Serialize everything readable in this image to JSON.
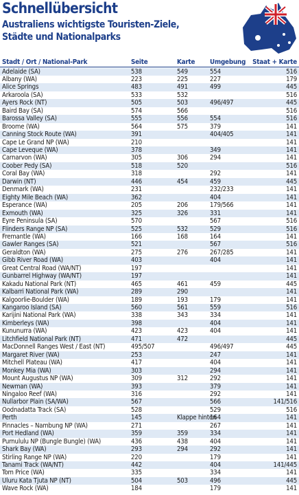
{
  "header": {
    "title": "Schnellübersicht",
    "subtitle_lines": [
      "Australiens wichtigste Touristen-Ziele,",
      "Städte und Nationalparks"
    ]
  },
  "table": {
    "columns": [
      "Stadt / Ort / National-Park",
      "Seite",
      "Karte",
      "Umgebung",
      "Staat + Karte"
    ],
    "rows": [
      [
        "Adelaide (SA)",
        "538",
        "549",
        "554",
        "516"
      ],
      [
        "Albany (WA)",
        "223",
        "225",
        "227",
        "179"
      ],
      [
        "Alice Springs",
        "483",
        "491",
        "499",
        "445"
      ],
      [
        "Arkaroola (SA)",
        "533",
        "532",
        null,
        "516"
      ],
      [
        "Ayers Rock (NT)",
        "505",
        "503",
        "496/497",
        "445"
      ],
      [
        "Baird Bay (SA)",
        "574",
        "566",
        null,
        "516"
      ],
      [
        "Barossa Valley (SA)",
        "555",
        "556",
        "554",
        "516"
      ],
      [
        "Broome (WA)",
        "564",
        "575",
        "379",
        "141"
      ],
      [
        "Canning Stock Route (WA)",
        "391",
        null,
        "404/405",
        "141"
      ],
      [
        "Cape Le Grand NP (WA)",
        "210",
        null,
        null,
        "141"
      ],
      [
        "Cape Leveque (WA)",
        "378",
        null,
        "349",
        "141"
      ],
      [
        "Carnarvon (WA)",
        "305",
        "306",
        "294",
        "141"
      ],
      [
        "Coober Pedy (SA)",
        "518",
        "520",
        null,
        "516"
      ],
      [
        "Coral Bay (WA)",
        "318",
        null,
        "292",
        "141"
      ],
      [
        "Darwin (NT)",
        "446",
        "454",
        "459",
        "445"
      ],
      [
        "Denmark (WA)",
        "231",
        null,
        "232/233",
        "141"
      ],
      [
        "Eighty Mile Beach (WA)",
        "362",
        null,
        "404",
        "141"
      ],
      [
        "Esperance (WA)",
        "205",
        "206",
        "179/566",
        "141"
      ],
      [
        "Exmouth (WA)",
        "325",
        "326",
        "331",
        "141"
      ],
      [
        "Eyre Peninsula (SA)",
        "570",
        null,
        "567",
        "516"
      ],
      [
        "Flinders Range NP (SA)",
        "525",
        "532",
        "529",
        "516"
      ],
      [
        "Fremantle (WA)",
        "166",
        "168",
        "164",
        "141"
      ],
      [
        "Gawler Ranges (SA)",
        "521",
        null,
        "567",
        "516"
      ],
      [
        "Geraldton (WA)",
        "275",
        "276",
        "267/285",
        "141"
      ],
      [
        "Gibb River Road (WA)",
        "403",
        null,
        "404",
        "141"
      ],
      [
        "Great Central Road (WA/NT)",
        "197",
        null,
        null,
        "141"
      ],
      [
        "Gunbarrel Highway (WA/NT)",
        "197",
        null,
        null,
        "141"
      ],
      [
        "Kakadu National Park (NT)",
        "465",
        "461",
        "459",
        "445"
      ],
      [
        "Kalbarri National Park (WA)",
        "289",
        "290",
        null,
        "141"
      ],
      [
        "Kalgoorlie-Boulder (WA)",
        "189",
        "193",
        "179",
        "141"
      ],
      [
        "Kangaroo Island (SA)",
        "560",
        "561",
        "559",
        "516"
      ],
      [
        "Karijini National Park (WA)",
        "338",
        "343",
        "334",
        "141"
      ],
      [
        "Kimberleys (WA)",
        "398",
        null,
        "404",
        "141"
      ],
      [
        "Kununurra (WA)",
        "423",
        "423",
        "404",
        "141"
      ],
      [
        "Litchfield National Park (NT)",
        "471",
        "472",
        null,
        "445"
      ],
      [
        "MacDonnell Ranges West / East (NT)",
        "495/507",
        null,
        "496/497",
        "445"
      ],
      [
        "Margaret River (WA)",
        "253",
        null,
        "247",
        "141"
      ],
      [
        "Mitchell Plateau (WA)",
        "417",
        null,
        "404",
        "141"
      ],
      [
        "Monkey Mia (WA)",
        "303",
        null,
        "294",
        "141"
      ],
      [
        "Mount Augustus NP (WA)",
        "309",
        "312",
        "292",
        "141"
      ],
      [
        "Newman (WA)",
        "393",
        null,
        "379",
        "141"
      ],
      [
        "Ningaloo Reef (WA)",
        "316",
        null,
        "292",
        "141"
      ],
      [
        "Nullarbor Plain (SA/WA)",
        "567",
        null,
        "566",
        "141/516"
      ],
      [
        "Oodnadatta Track (SA)",
        "528",
        null,
        "529",
        "516"
      ],
      [
        "Perth",
        "145",
        "Klappe hinten",
        "164",
        "141"
      ],
      [
        "Pinnacles – Nambung NP (WA)",
        "271",
        null,
        "267",
        "141"
      ],
      [
        "Port Hedland (WA)",
        "359",
        "359",
        "334",
        "141"
      ],
      [
        "Purnululu NP (Bungle Bungle) (WA)",
        "436",
        "438",
        "404",
        "141"
      ],
      [
        "Shark Bay (WA)",
        "293",
        "294",
        "292",
        "141"
      ],
      [
        "Stirling Range NP (WA)",
        "220",
        null,
        "179",
        "141"
      ],
      [
        "Tanami Track (WA/NT)",
        "442",
        null,
        "404",
        "141/445"
      ],
      [
        "Tom Price (WA)",
        "335",
        null,
        "334",
        "141"
      ],
      [
        "Uluru Kata Tjuta NP (NT)",
        "504",
        "503",
        "496",
        "445"
      ],
      [
        "Wave Rock (WA)",
        "184",
        null,
        "179",
        "141"
      ]
    ]
  }
}
